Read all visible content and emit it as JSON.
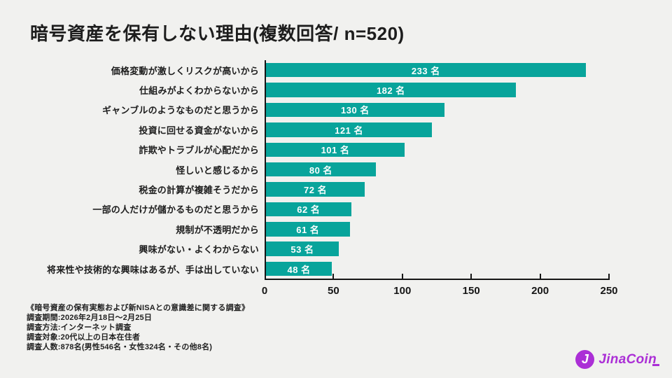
{
  "title": "暗号資産を保有しない理由(複数回答/ n=520)",
  "chart_data": {
    "type": "bar",
    "orientation": "horizontal",
    "title": "暗号資産を保有しない理由(複数回答/ n=520)",
    "categories": [
      "価格変動が激しくリスクが高いから",
      "仕組みがよくわからないから",
      "ギャンブルのようなものだと思うから",
      "投資に回せる資金がないから",
      "詐欺やトラブルが心配だから",
      "怪しいと感じるから",
      "税金の計算が複雑そうだから",
      "一部の人だけが儲かるものだと思うから",
      "規制が不透明だから",
      "興味がない・よくわからない",
      "将来性や技術的な興味はあるが、手は出していない"
    ],
    "values": [
      233,
      182,
      130,
      121,
      101,
      80,
      72,
      62,
      61,
      53,
      48
    ],
    "unit": "名",
    "value_label_position": "center",
    "xlabel": "",
    "ylabel": "",
    "xlim": [
      0,
      250
    ],
    "xticks": [
      0,
      50,
      100,
      150,
      200,
      250
    ],
    "grid": false,
    "legend": false,
    "bar_color": "#08a49b",
    "value_label_color": "#ffffff",
    "axis_color": "#161616"
  },
  "survey": {
    "lines": [
      "《暗号資産の保有実態および新NISAとの意識差に関する調査》",
      "調査期間:2026年2月18日〜2月25日",
      "調査方法:インターネット調査",
      "調査対象:20代以上の日本在住者",
      "調査人数:878名(男性546名・女性324名・その他8名)"
    ]
  },
  "logo": {
    "brand": "JinaCoin",
    "mark_letter": "J",
    "color": "#ab2fd6"
  }
}
